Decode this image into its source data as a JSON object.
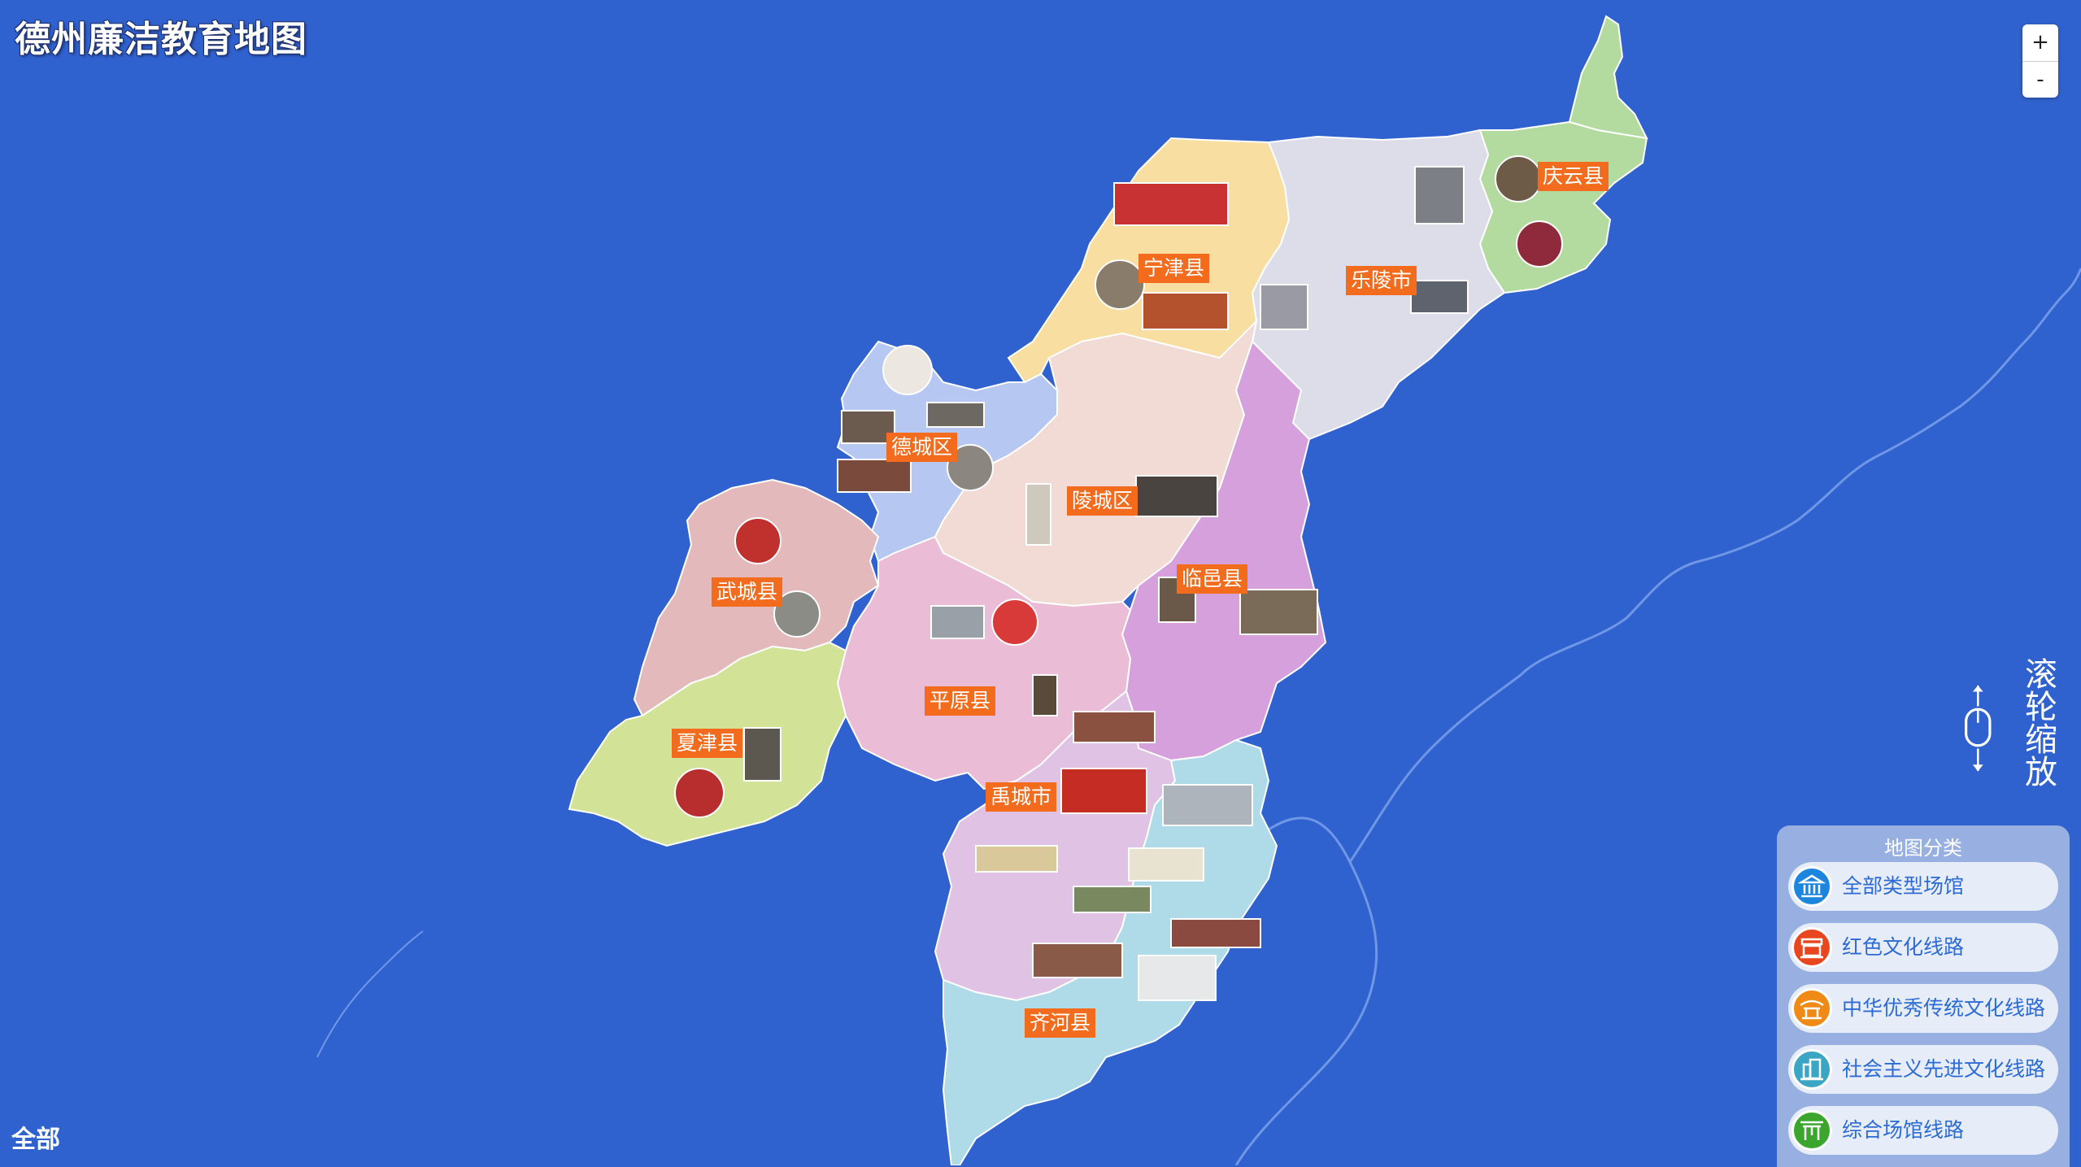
{
  "title": "德州廉洁教育地图",
  "zoom": {
    "in_label": "+",
    "out_label": "-"
  },
  "scroll_hint": {
    "chars": [
      "滚",
      "轮",
      "缩",
      "放"
    ]
  },
  "current_filter": "全部",
  "panel": {
    "title": "地图分类",
    "categories": [
      {
        "label": "全部类型场馆",
        "color": "#1c86de",
        "icon": "museum-icon"
      },
      {
        "label": "红色文化线路",
        "color": "#e8461e",
        "icon": "gate-icon"
      },
      {
        "label": "中华优秀传统文化线路",
        "color": "#ef8a17",
        "icon": "pavilion-icon"
      },
      {
        "label": "社会主义先进文化线路",
        "color": "#3aa6c4",
        "icon": "building-icon"
      },
      {
        "label": "综合场馆线路",
        "color": "#3ba62e",
        "icon": "archway-icon"
      }
    ]
  },
  "regions": [
    {
      "name": "庆云县"
    },
    {
      "name": "乐陵市"
    },
    {
      "name": "宁津县"
    },
    {
      "name": "德城区"
    },
    {
      "name": "陵城区"
    },
    {
      "name": "临邑县"
    },
    {
      "name": "武城县"
    },
    {
      "name": "平原县"
    },
    {
      "name": "夏津县"
    },
    {
      "name": "禹城市"
    },
    {
      "name": "齐河县"
    }
  ],
  "colors": {
    "sea": "#3062cf",
    "label_bg": "#f36b1c"
  }
}
